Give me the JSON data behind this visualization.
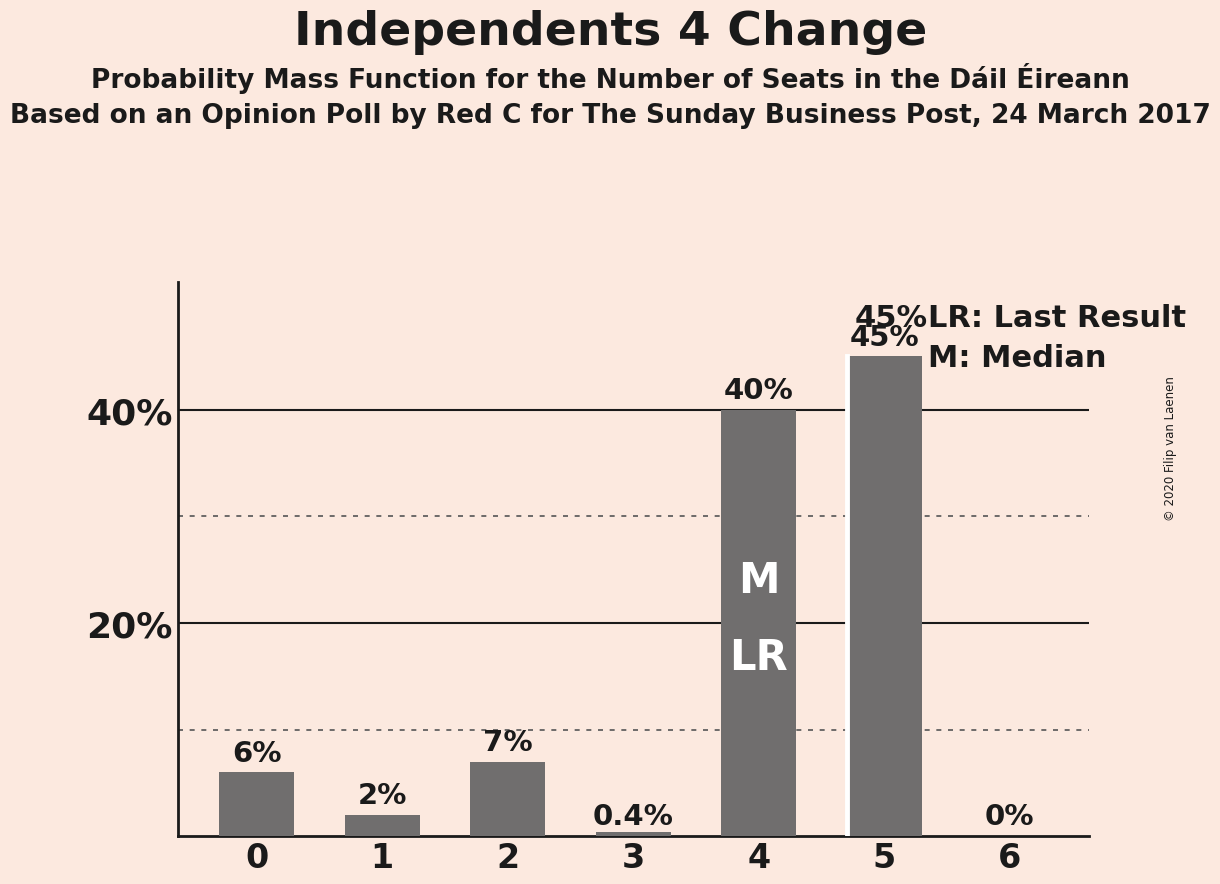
{
  "title": "Independents 4 Change",
  "subtitle1": "Probability Mass Function for the Number of Seats in the Dáil Éireann",
  "subtitle2": "Based on an Opinion Poll by Red C for The Sunday Business Post, 24 March 2017",
  "copyright": "© 2020 Filip van Laenen",
  "categories": [
    0,
    1,
    2,
    3,
    4,
    5,
    6
  ],
  "values": [
    0.06,
    0.02,
    0.07,
    0.004,
    0.4,
    0.45,
    0.0
  ],
  "bar_color": "#706e6e",
  "background_color": "#fce9df",
  "title_fontsize": 34,
  "subtitle1_fontsize": 19,
  "subtitle2_fontsize": 19,
  "bar_label_fontsize": 21,
  "bar_labels": [
    "6%",
    "2%",
    "7%",
    "0.4%",
    "40%",
    "45%",
    "0%"
  ],
  "ytick_labels": [
    "20%",
    "40%"
  ],
  "ytick_values": [
    0.2,
    0.4
  ],
  "solid_gridlines": [
    0.2,
    0.4
  ],
  "dotted_gridlines": [
    0.1,
    0.3
  ],
  "ylim": [
    0,
    0.52
  ],
  "annotation_bar": 4,
  "white_line_bar": 5,
  "bar_width": 0.6,
  "legend_pct": "45%",
  "legend_lr": "LR: Last Result",
  "legend_m": "M: Median",
  "m_label": "M",
  "lr_label": "LR"
}
